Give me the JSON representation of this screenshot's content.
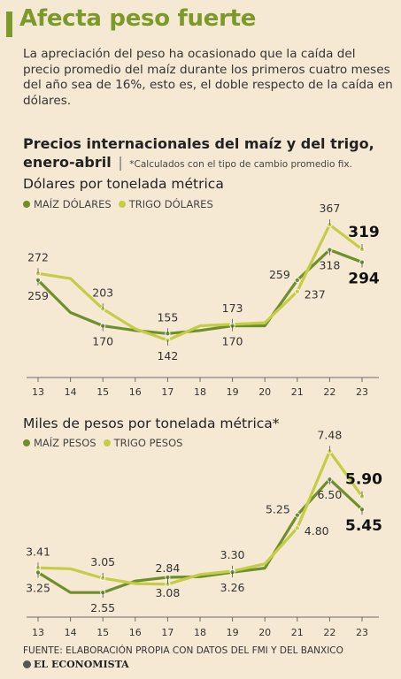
{
  "header": {
    "title": "Afecta peso fuerte",
    "description": "La apreciación del peso ha ocasionado que la caída del precio promedio del maíz durante los primeros cuatro meses del año sea de 16%, esto es, el doble respecto de la caída en dólares.",
    "subtitle": "Precios internacionales del maíz y del trigo, enero-abril",
    "subtitle_separator": "|",
    "note": "*Calculados con el tipo de cambio promedio fix."
  },
  "colors": {
    "maiz": "#6f8f2c",
    "trigo": "#c5cc46",
    "accent": "#7b9a2a",
    "background": "#f6e9d3"
  },
  "chart_data": [
    {
      "type": "line",
      "title": "Dólares por tonelada métrica",
      "categories": [
        "13",
        "14",
        "15",
        "16",
        "17",
        "18",
        "19",
        "20",
        "21",
        "22",
        "23"
      ],
      "ylim": [
        90,
        400
      ],
      "series": [
        {
          "name": "MAÍZ DÓLARES",
          "color_key": "maiz",
          "values": [
            259,
            196,
            170,
            161,
            155,
            161,
            170,
            170,
            259,
            318,
            294
          ]
        },
        {
          "name": "TRIGO DÓLARES",
          "color_key": "trigo",
          "values": [
            272,
            262,
            203,
            164,
            142,
            170,
            173,
            176,
            237,
            367,
            319
          ]
        }
      ],
      "labels": [
        {
          "text": "272",
          "series": 1,
          "index": 0,
          "pos": "above",
          "bold": false
        },
        {
          "text": "259",
          "series": 0,
          "index": 0,
          "pos": "below",
          "bold": false
        },
        {
          "text": "203",
          "series": 1,
          "index": 2,
          "pos": "above",
          "bold": false
        },
        {
          "text": "170",
          "series": 0,
          "index": 2,
          "pos": "below",
          "bold": false
        },
        {
          "text": "155",
          "series": 0,
          "index": 4,
          "pos": "above",
          "bold": false
        },
        {
          "text": "142",
          "series": 1,
          "index": 4,
          "pos": "below",
          "bold": false
        },
        {
          "text": "173",
          "series": 1,
          "index": 6,
          "pos": "above",
          "bold": false
        },
        {
          "text": "170",
          "series": 0,
          "index": 6,
          "pos": "below",
          "bold": false
        },
        {
          "text": "259",
          "series": 0,
          "index": 8,
          "pos": "left",
          "bold": false
        },
        {
          "text": "237",
          "series": 1,
          "index": 8,
          "pos": "right",
          "bold": false
        },
        {
          "text": "367",
          "series": 1,
          "index": 9,
          "pos": "above",
          "bold": false
        },
        {
          "text": "318",
          "series": 0,
          "index": 9,
          "pos": "below",
          "bold": false
        },
        {
          "text": "319",
          "series": 1,
          "index": 10,
          "pos": "above",
          "bold": true
        },
        {
          "text": "294",
          "series": 0,
          "index": 10,
          "pos": "below",
          "bold": true
        }
      ]
    },
    {
      "type": "line",
      "title": "Miles de pesos por tonelada métrica*",
      "categories": [
        "13",
        "14",
        "15",
        "16",
        "17",
        "18",
        "19",
        "20",
        "21",
        "22",
        "23"
      ],
      "ylim": [
        2.0,
        7.8
      ],
      "series": [
        {
          "name": "MAÍZ PESOS",
          "color_key": "maiz",
          "values": [
            3.25,
            2.55,
            2.55,
            2.95,
            3.08,
            3.1,
            3.26,
            3.4,
            5.25,
            6.5,
            5.45
          ]
        },
        {
          "name": "TRIGO PESOS",
          "color_key": "trigo",
          "values": [
            3.41,
            3.38,
            3.05,
            2.86,
            2.84,
            3.18,
            3.3,
            3.55,
            4.8,
            7.48,
            5.9
          ]
        }
      ],
      "labels": [
        {
          "text": "3.41",
          "series": 1,
          "index": 0,
          "pos": "above",
          "bold": false
        },
        {
          "text": "3.25",
          "series": 0,
          "index": 0,
          "pos": "below",
          "bold": false
        },
        {
          "text": "3.05",
          "series": 1,
          "index": 2,
          "pos": "above",
          "bold": false
        },
        {
          "text": "2.55",
          "series": 0,
          "index": 2,
          "pos": "below",
          "bold": false
        },
        {
          "text": "2.84",
          "series": 1,
          "index": 4,
          "pos": "above",
          "bold": false
        },
        {
          "text": "3.08",
          "series": 0,
          "index": 4,
          "pos": "below",
          "bold": false
        },
        {
          "text": "3.30",
          "series": 1,
          "index": 6,
          "pos": "above",
          "bold": false
        },
        {
          "text": "3.26",
          "series": 0,
          "index": 6,
          "pos": "below",
          "bold": false
        },
        {
          "text": "5.25",
          "series": 0,
          "index": 8,
          "pos": "left",
          "bold": false
        },
        {
          "text": "4.80",
          "series": 1,
          "index": 8,
          "pos": "right",
          "bold": false
        },
        {
          "text": "7.48",
          "series": 1,
          "index": 9,
          "pos": "above",
          "bold": false
        },
        {
          "text": "6.50",
          "series": 0,
          "index": 9,
          "pos": "below",
          "bold": false
        },
        {
          "text": "5.90",
          "series": 1,
          "index": 10,
          "pos": "above",
          "bold": true
        },
        {
          "text": "5.45",
          "series": 0,
          "index": 10,
          "pos": "below",
          "bold": true
        }
      ]
    }
  ],
  "footer": {
    "source": "FUENTE: ELABORACIÓN PROPIA CON DATOS DEL FMI Y DEL BANXICO",
    "brand": "EL ECONOMISTA"
  }
}
